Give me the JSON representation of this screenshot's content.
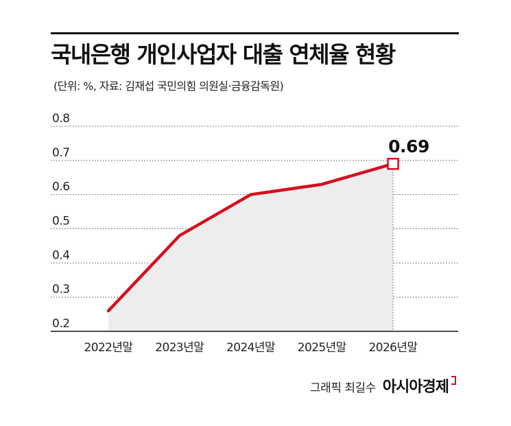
{
  "header": {
    "title": "국내은행 개인사업자 대출 연체율 현황",
    "subtitle": "(단위: %, 자료: 김재섭 국민의힘 의원실·금융감독원)"
  },
  "footer": {
    "credit": "그래픽 최길수",
    "brand": "아시아경제"
  },
  "colors": {
    "line": "#d4101e",
    "area": "#ededed",
    "grid": "#555555",
    "axis": "#111111"
  },
  "chart_data": {
    "type": "area",
    "title": "국내은행 개인사업자 대출 연체율 현황",
    "xlabel": "",
    "ylabel": "",
    "categories": [
      "2022년말",
      "2023년말",
      "2024년말",
      "2025년말",
      "2026년말"
    ],
    "series": [
      {
        "values": [
          0.26,
          0.48,
          0.6,
          0.63,
          0.69
        ]
      }
    ],
    "ylim": [
      0.2,
      0.8
    ],
    "yticks": [
      "0.2",
      "0.3",
      "0.4",
      "0.5",
      "0.6",
      "0.7",
      "0.8"
    ],
    "grid": true,
    "highlight": {
      "index": 4,
      "label": "0.69"
    }
  }
}
